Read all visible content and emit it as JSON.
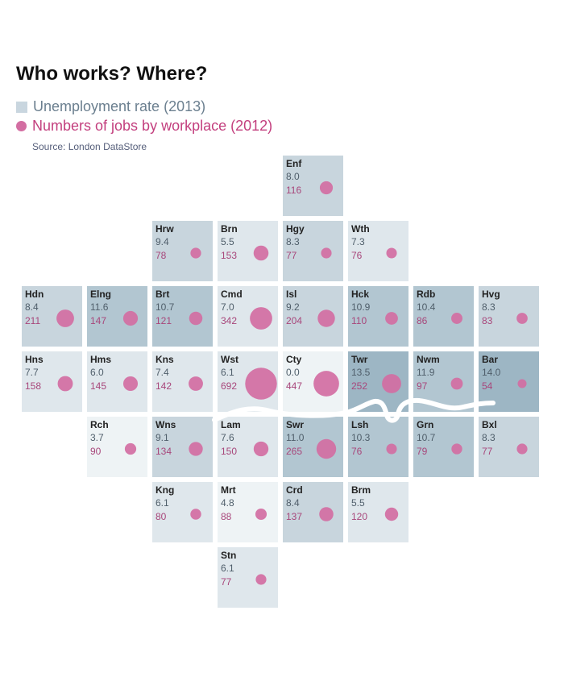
{
  "title": "Who works? Where?",
  "legend": {
    "unemployment": "Unemployment rate (2013)",
    "jobs": "Numbers of jobs by workplace (2012)"
  },
  "source": "Source: London DataStore",
  "colors": {
    "tile_lightest": "#eef3f5",
    "tile_light": "#dfe7ec",
    "tile_mid": "#c8d5dd",
    "tile_dark": "#b2c6d1",
    "tile_darkest": "#9db6c4",
    "dot": "#d36ea2",
    "river": "#ffffff"
  },
  "chart_data": {
    "type": "tile-map",
    "boroughs": [
      {
        "code": "Enf",
        "col": 4,
        "row": 0,
        "rate": "8.0",
        "jobs": "116"
      },
      {
        "code": "Hrw",
        "col": 2,
        "row": 1,
        "rate": "9.4",
        "jobs": "78"
      },
      {
        "code": "Brn",
        "col": 3,
        "row": 1,
        "rate": "5.5",
        "jobs": "153"
      },
      {
        "code": "Hgy",
        "col": 4,
        "row": 1,
        "rate": "8.3",
        "jobs": "77"
      },
      {
        "code": "Wth",
        "col": 5,
        "row": 1,
        "rate": "7.3",
        "jobs": "76"
      },
      {
        "code": "Hdn",
        "col": 0,
        "row": 2,
        "rate": "8.4",
        "jobs": "211"
      },
      {
        "code": "Elng",
        "col": 1,
        "row": 2,
        "rate": "11.6",
        "jobs": "147"
      },
      {
        "code": "Brt",
        "col": 2,
        "row": 2,
        "rate": "10.7",
        "jobs": "121"
      },
      {
        "code": "Cmd",
        "col": 3,
        "row": 2,
        "rate": "7.0",
        "jobs": "342"
      },
      {
        "code": "Isl",
        "col": 4,
        "row": 2,
        "rate": "9.2",
        "jobs": "204"
      },
      {
        "code": "Hck",
        "col": 5,
        "row": 2,
        "rate": "10.9",
        "jobs": "110"
      },
      {
        "code": "Rdb",
        "col": 6,
        "row": 2,
        "rate": "10.4",
        "jobs": "86"
      },
      {
        "code": "Hvg",
        "col": 7,
        "row": 2,
        "rate": "8.3",
        "jobs": "83"
      },
      {
        "code": "Hns",
        "col": 0,
        "row": 3,
        "rate": "7.7",
        "jobs": "158"
      },
      {
        "code": "Hms",
        "col": 1,
        "row": 3,
        "rate": "6.0",
        "jobs": "145"
      },
      {
        "code": "Kns",
        "col": 2,
        "row": 3,
        "rate": "7.4",
        "jobs": "142"
      },
      {
        "code": "Wst",
        "col": 3,
        "row": 3,
        "rate": "6.1",
        "jobs": "692"
      },
      {
        "code": "Cty",
        "col": 4,
        "row": 3,
        "rate": "0.0",
        "jobs": "447"
      },
      {
        "code": "Twr",
        "col": 5,
        "row": 3,
        "rate": "13.5",
        "jobs": "252"
      },
      {
        "code": "Nwm",
        "col": 6,
        "row": 3,
        "rate": "11.9",
        "jobs": "97"
      },
      {
        "code": "Bar",
        "col": 7,
        "row": 3,
        "rate": "14.0",
        "jobs": "54"
      },
      {
        "code": "Rch",
        "col": 1,
        "row": 4,
        "rate": "3.7",
        "jobs": "90"
      },
      {
        "code": "Wns",
        "col": 2,
        "row": 4,
        "rate": "9.1",
        "jobs": "134"
      },
      {
        "code": "Lam",
        "col": 3,
        "row": 4,
        "rate": "7.6",
        "jobs": "150"
      },
      {
        "code": "Swr",
        "col": 4,
        "row": 4,
        "rate": "11.0",
        "jobs": "265"
      },
      {
        "code": "Lsh",
        "col": 5,
        "row": 4,
        "rate": "10.3",
        "jobs": "76"
      },
      {
        "code": "Grn",
        "col": 6,
        "row": 4,
        "rate": "10.7",
        "jobs": "79"
      },
      {
        "code": "Bxl",
        "col": 7,
        "row": 4,
        "rate": "8.3",
        "jobs": "77"
      },
      {
        "code": "Kng",
        "col": 2,
        "row": 5,
        "rate": "6.1",
        "jobs": "80"
      },
      {
        "code": "Mrt",
        "col": 3,
        "row": 5,
        "rate": "4.8",
        "jobs": "88"
      },
      {
        "code": "Crd",
        "col": 4,
        "row": 5,
        "rate": "8.4",
        "jobs": "137"
      },
      {
        "code": "Brm",
        "col": 5,
        "row": 5,
        "rate": "5.5",
        "jobs": "120"
      },
      {
        "code": "Stn",
        "col": 3,
        "row": 6,
        "rate": "6.1",
        "jobs": "77"
      }
    ]
  }
}
